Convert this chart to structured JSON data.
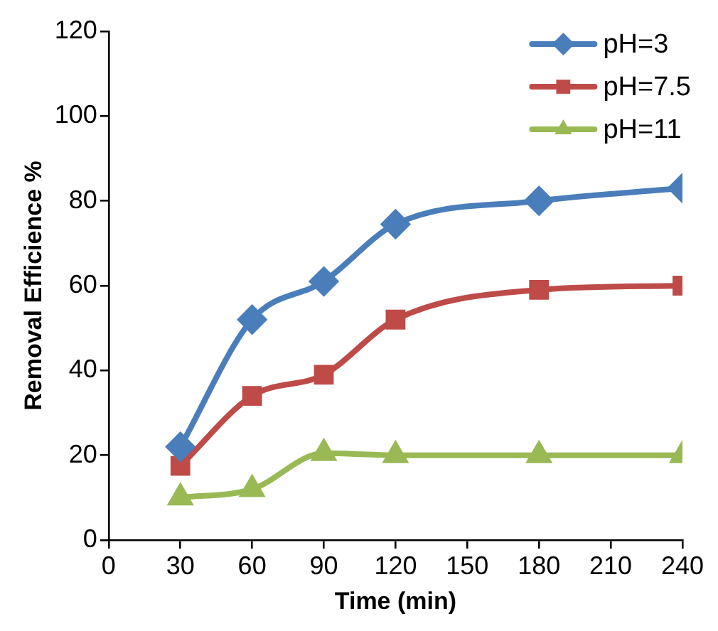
{
  "chart_data": {
    "type": "line",
    "xlabel": "Time (min)",
    "ylabel": "Removal Efficience %",
    "x": [
      30,
      60,
      90,
      120,
      180,
      240
    ],
    "series": [
      {
        "name": "pH=3",
        "color": "#4a7ebb",
        "marker": "diamond",
        "values": [
          22,
          52,
          61,
          74.5,
          80,
          83
        ]
      },
      {
        "name": "pH=7.5",
        "color": "#be4b48",
        "marker": "square",
        "values": [
          17.5,
          34,
          39,
          52,
          59,
          60
        ]
      },
      {
        "name": "pH=11",
        "color": "#98b954",
        "marker": "triangle",
        "values": [
          10,
          12,
          20.5,
          20,
          20,
          20
        ]
      }
    ],
    "xlim": [
      0,
      240
    ],
    "xticks": [
      0,
      30,
      60,
      90,
      120,
      150,
      180,
      210,
      240
    ],
    "ylim": [
      0,
      120
    ],
    "yticks": [
      0,
      20,
      40,
      60,
      80,
      100,
      120
    ],
    "grid": false,
    "legend": "top right"
  }
}
